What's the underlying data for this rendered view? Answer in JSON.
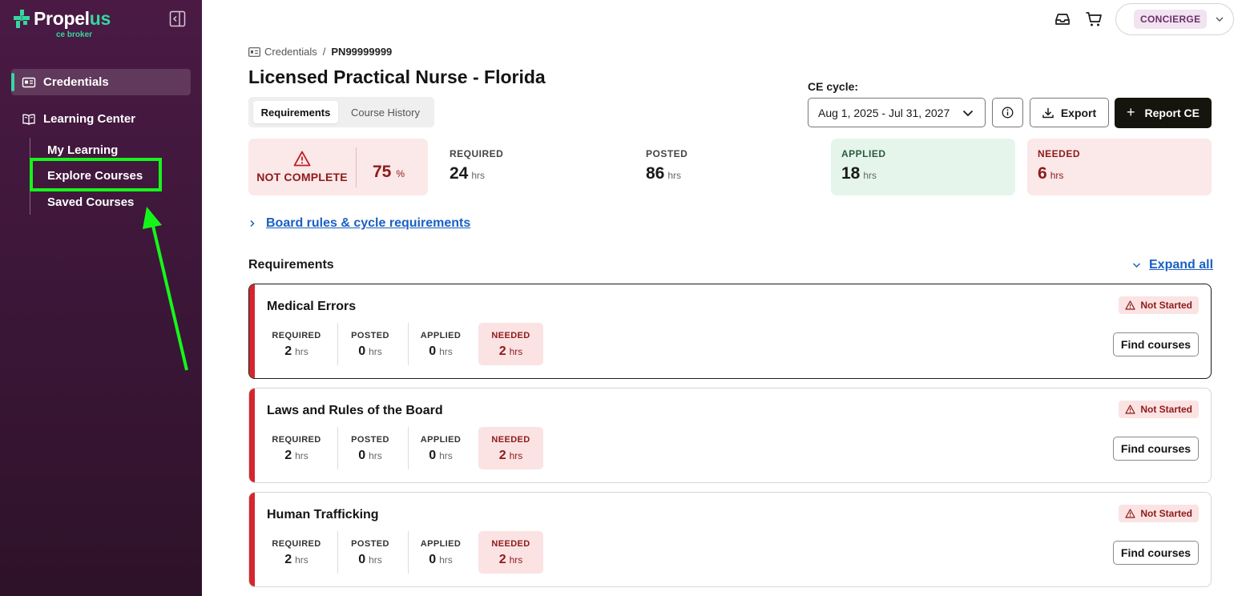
{
  "brand": {
    "name_main": "Propel",
    "name_accent": "us",
    "sub": "ce broker",
    "accent_color": "#37d6a1"
  },
  "sidebar": {
    "items": [
      {
        "label": "Credentials",
        "icon": "id-card-icon",
        "active": true
      },
      {
        "label": "Learning Center",
        "icon": "book-open-icon",
        "active": false
      }
    ],
    "sub_items": [
      {
        "label": "My Learning"
      },
      {
        "label": "Explore Courses",
        "highlighted": true
      },
      {
        "label": "Saved Courses"
      }
    ]
  },
  "topbar": {
    "account_label": "CONCIERGE",
    "icons": [
      "inbox-icon",
      "cart-icon"
    ]
  },
  "breadcrumb": {
    "parent": "Credentials",
    "separator": "/",
    "current": "PN99999999"
  },
  "page": {
    "title": "Licensed Practical Nurse - Florida"
  },
  "tabs": [
    {
      "label": "Requirements",
      "active": true
    },
    {
      "label": "Course History",
      "active": false
    }
  ],
  "cycle": {
    "label": "CE cycle:",
    "value": "Aug 1, 2025 - Jul 31, 2027"
  },
  "actions": {
    "export_label": "Export",
    "report_label": "Report CE",
    "report_plus": "+"
  },
  "summary": {
    "status": "NOT COMPLETE",
    "percent": "75",
    "percent_sign": "%",
    "required": {
      "label": "REQUIRED",
      "value": "24",
      "unit": "hrs"
    },
    "posted": {
      "label": "POSTED",
      "value": "86",
      "unit": "hrs"
    },
    "applied": {
      "label": "APPLIED",
      "value": "18",
      "unit": "hrs"
    },
    "needed": {
      "label": "NEEDED",
      "value": "6",
      "unit": "hrs"
    }
  },
  "board_link": "Board rules & cycle requirements",
  "requirements_heading": "Requirements",
  "expand_all": "Expand all",
  "requirements": [
    {
      "name": "Medical Errors",
      "status": "Not Started",
      "required": "2",
      "posted": "0",
      "applied": "0",
      "needed": "2",
      "unit": "hrs",
      "button": "Find courses"
    },
    {
      "name": "Laws and Rules of the Board",
      "status": "Not Started",
      "required": "2",
      "posted": "0",
      "applied": "0",
      "needed": "2",
      "unit": "hrs",
      "button": "Find courses"
    },
    {
      "name": "Human Trafficking",
      "status": "Not Started",
      "required": "2",
      "posted": "0",
      "applied": "0",
      "needed": "2",
      "unit": "hrs",
      "button": "Find courses"
    }
  ],
  "mini_labels": {
    "required": "REQUIRED",
    "posted": "POSTED",
    "applied": "APPLIED",
    "needed": "NEEDED"
  },
  "colors": {
    "sidebar_bg": "#3a1636",
    "danger": "#d4262e",
    "link": "#1a5fc4",
    "annotation": "#16f51b"
  }
}
